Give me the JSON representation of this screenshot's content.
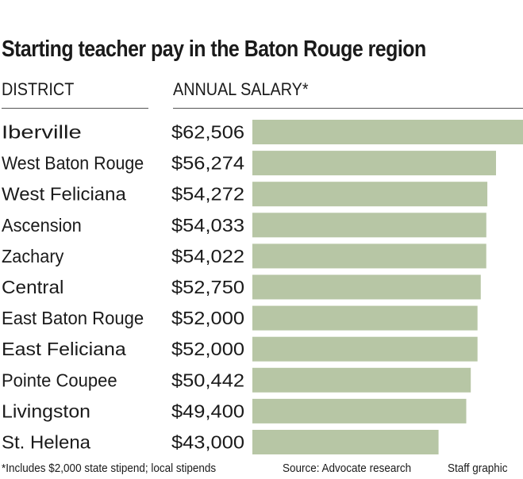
{
  "chart_data": {
    "type": "bar",
    "orientation": "horizontal",
    "title": "Starting teacher pay in the Baton Rouge region",
    "column_headers": {
      "category": "DISTRICT",
      "value": "ANNUAL SALARY*"
    },
    "categories": [
      "Iberville",
      "West Baton Rouge",
      "West Feliciana",
      "Ascension",
      "Zachary",
      "Central",
      "East Baton Rouge",
      "East Feliciana",
      "Pointe Coupee",
      "Livingston",
      "St. Helena"
    ],
    "values": [
      62506,
      56274,
      54272,
      54033,
      54022,
      52750,
      52000,
      52000,
      50442,
      49400,
      43000
    ],
    "value_labels": [
      "$62,506",
      "$56,274",
      "$54,272",
      "$54,033",
      "$54,022",
      "$52,750",
      "$52,000",
      "$52,000",
      "$50,442",
      "$49,400",
      "$43,000"
    ],
    "bar_color": "#b7c6a5",
    "grid": false,
    "legend": "none"
  },
  "footer": {
    "note": "*Includes $2,000 state stipend; local stipends",
    "source": "Source: Advocate research",
    "credit": "Staff graphic"
  }
}
